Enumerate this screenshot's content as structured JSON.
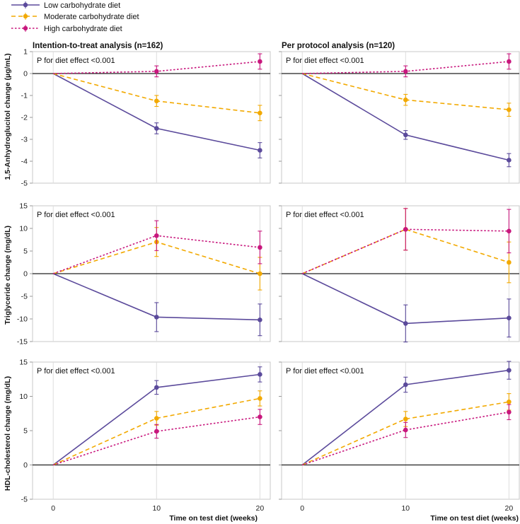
{
  "legend": [
    {
      "label": "Low carbohydrate diet",
      "color": "#5b4a9b",
      "dash": "solid"
    },
    {
      "label": "Moderate carbohydrate diet",
      "color": "#f2a900",
      "dash": "dashed"
    },
    {
      "label": "High carbohydrate diet",
      "color": "#c8177d",
      "dash": "dotted"
    }
  ],
  "column_titles": [
    "Intention-to-treat analysis (n=162)",
    "Per protocol analysis (n=120)"
  ],
  "x_axis_label": "Time on test diet (weeks)",
  "chart_data": [
    {
      "type": "line",
      "row": 0,
      "col": 0,
      "title": "Intention-to-treat analysis (n=162)",
      "ylabel": "1,5-Anhydroglucitol change (µg/mL)",
      "annotation": "P for diet effect <0.001",
      "x": [
        0,
        10,
        20
      ],
      "xticks": [
        "0",
        "10",
        "20"
      ],
      "xlim": [
        -2,
        21
      ],
      "ylim": [
        -5,
        1
      ],
      "yticks": [
        -5,
        -4,
        -3,
        -2,
        -1,
        0,
        1
      ],
      "yticklabels": [
        "-5",
        "-4",
        "-3",
        "-2",
        "-1",
        "0",
        "1"
      ],
      "series": [
        {
          "name": "Low carbohydrate diet",
          "values": [
            0,
            -2.5,
            -3.5
          ],
          "err": [
            0,
            0.25,
            0.35
          ]
        },
        {
          "name": "Moderate carbohydrate diet",
          "values": [
            0,
            -1.25,
            -1.8
          ],
          "err": [
            0,
            0.25,
            0.35
          ]
        },
        {
          "name": "High carbohydrate diet",
          "values": [
            0,
            0.1,
            0.55
          ],
          "err": [
            0,
            0.25,
            0.35
          ]
        }
      ]
    },
    {
      "type": "line",
      "row": 0,
      "col": 1,
      "title": "Per protocol analysis (n=120)",
      "ylabel": "",
      "annotation": "P for diet effect <0.001",
      "x": [
        0,
        10,
        20
      ],
      "xticks": [
        "0",
        "10",
        "20"
      ],
      "xlim": [
        -2,
        21
      ],
      "ylim": [
        -5,
        1
      ],
      "yticks": [
        -5,
        -4,
        -3,
        -2,
        -1,
        0,
        1
      ],
      "yticklabels": [
        "",
        "",
        "",
        "",
        "",
        "",
        ""
      ],
      "series": [
        {
          "name": "Low carbohydrate diet",
          "values": [
            0,
            -2.8,
            -3.95
          ],
          "err": [
            0,
            0.2,
            0.3
          ]
        },
        {
          "name": "Moderate carbohydrate diet",
          "values": [
            0,
            -1.2,
            -1.65
          ],
          "err": [
            0,
            0.25,
            0.3
          ]
        },
        {
          "name": "High carbohydrate diet",
          "values": [
            0,
            0.1,
            0.55
          ],
          "err": [
            0,
            0.25,
            0.35
          ]
        }
      ]
    },
    {
      "type": "line",
      "row": 1,
      "col": 0,
      "title": "",
      "ylabel": "Triglyceride change (mg/dL)",
      "annotation": "P for diet effect <0.001",
      "x": [
        0,
        10,
        20
      ],
      "xticks": [
        "0",
        "10",
        "20"
      ],
      "xlim": [
        -2,
        21
      ],
      "ylim": [
        -15,
        15
      ],
      "yticks": [
        -15,
        -10,
        -5,
        0,
        5,
        10,
        15
      ],
      "yticklabels": [
        "-15",
        "-10",
        "-5",
        "0",
        "5",
        "10",
        "15"
      ],
      "series": [
        {
          "name": "Low carbohydrate diet",
          "values": [
            0,
            -9.6,
            -10.2
          ],
          "err": [
            0,
            3.2,
            3.5
          ]
        },
        {
          "name": "Moderate carbohydrate diet",
          "values": [
            0,
            7.0,
            0.0
          ],
          "err": [
            0,
            3.2,
            3.6
          ]
        },
        {
          "name": "High carbohydrate diet",
          "values": [
            0,
            8.4,
            5.8
          ],
          "err": [
            0,
            3.3,
            3.6
          ]
        }
      ]
    },
    {
      "type": "line",
      "row": 1,
      "col": 1,
      "title": "",
      "ylabel": "",
      "annotation": "P for diet effect <0.001",
      "x": [
        0,
        10,
        20
      ],
      "xticks": [
        "0",
        "10",
        "20"
      ],
      "xlim": [
        -2,
        21
      ],
      "ylim": [
        -15,
        15
      ],
      "yticks": [
        -15,
        -10,
        -5,
        0,
        5,
        10,
        15
      ],
      "yticklabels": [
        "",
        "",
        "",
        "",
        "",
        "",
        ""
      ],
      "series": [
        {
          "name": "Low carbohydrate diet",
          "values": [
            0,
            -11.0,
            -9.8
          ],
          "err": [
            0,
            4.1,
            4.2
          ]
        },
        {
          "name": "Moderate carbohydrate diet",
          "values": [
            0,
            9.8,
            2.5
          ],
          "err": [
            0,
            4.6,
            4.5
          ]
        },
        {
          "name": "High carbohydrate diet",
          "values": [
            0,
            9.8,
            9.4
          ],
          "err": [
            0,
            4.6,
            4.8
          ]
        }
      ]
    },
    {
      "type": "line",
      "row": 2,
      "col": 0,
      "title": "",
      "ylabel": "HDL-cholesterol change (mg/dL)",
      "annotation": "P for diet effect <0.001",
      "x": [
        0,
        10,
        20
      ],
      "xticks": [
        "0",
        "10",
        "20"
      ],
      "xlim": [
        -2,
        21
      ],
      "ylim": [
        -5,
        15
      ],
      "yticks": [
        -5,
        0,
        5,
        10,
        15
      ],
      "yticklabels": [
        "-5",
        "0",
        "5",
        "10",
        "15"
      ],
      "series": [
        {
          "name": "Low carbohydrate diet",
          "values": [
            0,
            11.3,
            13.2
          ],
          "err": [
            0,
            1.0,
            1.1
          ]
        },
        {
          "name": "Moderate carbohydrate diet",
          "values": [
            0,
            6.8,
            9.7
          ],
          "err": [
            0,
            1.0,
            1.1
          ]
        },
        {
          "name": "High carbohydrate diet",
          "values": [
            0,
            4.9,
            7.0
          ],
          "err": [
            0,
            1.0,
            1.1
          ]
        }
      ]
    },
    {
      "type": "line",
      "row": 2,
      "col": 1,
      "title": "",
      "ylabel": "",
      "annotation": "P for diet effect <0.001",
      "x": [
        0,
        10,
        20
      ],
      "xticks": [
        "0",
        "10",
        "20"
      ],
      "xlim": [
        -2,
        21
      ],
      "ylim": [
        -5,
        15
      ],
      "yticks": [
        -5,
        0,
        5,
        10,
        15
      ],
      "yticklabels": [
        "",
        "",
        "",
        "",
        "",
        "",
        ""
      ],
      "series": [
        {
          "name": "Low carbohydrate diet",
          "values": [
            0,
            11.7,
            13.8
          ],
          "err": [
            0,
            1.1,
            1.3
          ]
        },
        {
          "name": "Moderate carbohydrate diet",
          "values": [
            0,
            6.7,
            9.2
          ],
          "err": [
            0,
            1.1,
            1.2
          ]
        },
        {
          "name": "High carbohydrate diet",
          "values": [
            0,
            5.1,
            7.7
          ],
          "err": [
            0,
            1.1,
            1.1
          ]
        }
      ]
    }
  ]
}
